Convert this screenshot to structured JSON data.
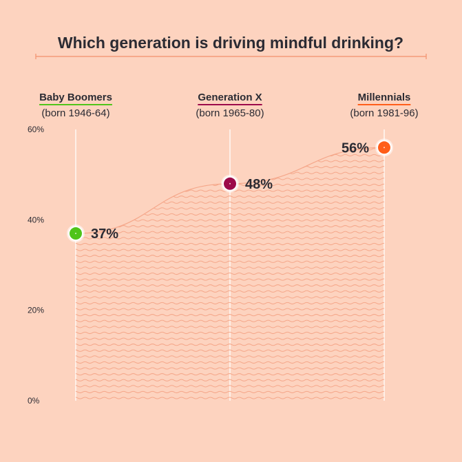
{
  "title": "Which generation is driving mindful drinking?",
  "chart_data": {
    "type": "area",
    "title": "Which generation is driving mindful drinking?",
    "xlabel": "",
    "ylabel": "",
    "ylim": [
      0,
      60
    ],
    "yticks": [
      0,
      20,
      40,
      60
    ],
    "ytick_labels": [
      "0%",
      "20%",
      "40%",
      "60%"
    ],
    "grid": false,
    "categories": [
      {
        "name": "Baby Boomers",
        "born": "(born 1946-64)",
        "color": "#4fc41a"
      },
      {
        "name": "Generation X",
        "born": "(born 1965-80)",
        "color": "#9c0a4a"
      },
      {
        "name": "Millennials",
        "born": "(born 1981-96)",
        "color": "#ff5e1a"
      }
    ],
    "values": [
      37,
      48,
      56
    ],
    "value_labels": [
      "37%",
      "48%",
      "56%"
    ],
    "colors": {
      "background": "#fdd3bf",
      "area_lines": "#f5a78a",
      "accent": "#f39a78",
      "text": "#2b2b33"
    }
  }
}
